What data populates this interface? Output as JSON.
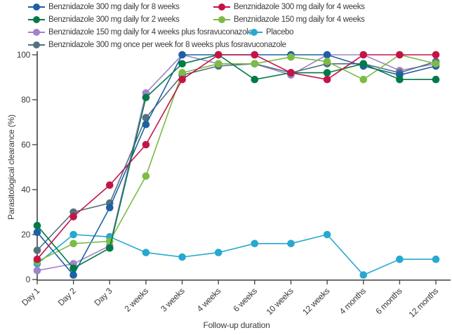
{
  "figure": {
    "xlabel": "Follow-up duration",
    "ylabel": "Parasitological clearance (%)"
  },
  "chart_data": {
    "type": "line",
    "title": "",
    "xlabel": "Follow-up duration",
    "ylabel": "Parasitological clearance (%)",
    "ylim": [
      0,
      100
    ],
    "yticks": [
      0,
      20,
      40,
      60,
      80,
      100
    ],
    "grid": false,
    "legend_position": "top",
    "categories": [
      "Day 1",
      "Day 2",
      "Day 3",
      "2 weeks",
      "3 weeks",
      "4 weeks",
      "6 weeks",
      "10 weeks",
      "12 weeks",
      "4 months",
      "6 months",
      "12 months"
    ],
    "series": [
      {
        "name": "Benznidazole 300 mg daily for 8 weeks",
        "color": "#1d60a5",
        "values": [
          21,
          2,
          32,
          69,
          100,
          100,
          100,
          100,
          100,
          95,
          91,
          95
        ]
      },
      {
        "name": "Benznidazole 300 mg daily for 4 weeks",
        "color": "#c41447",
        "values": [
          9,
          28,
          42,
          60,
          89,
          100,
          100,
          92,
          89,
          100,
          100,
          100
        ]
      },
      {
        "name": "Benznidazole 300 mg daily for 2 weeks",
        "color": "#007a47",
        "values": [
          24,
          5,
          14,
          81,
          96,
          100,
          89,
          92,
          92,
          96,
          89,
          89
        ]
      },
      {
        "name": "Benznidazole 150 mg daily for 4 weeks",
        "color": "#7cbb45",
        "values": [
          8,
          16,
          17,
          46,
          92,
          96,
          96,
          99,
          97,
          89,
          100,
          96
        ]
      },
      {
        "name": "Benznidazole 150 mg daily for 4 weeks plus fosravuconazole",
        "color": "#a183c9",
        "values": [
          4,
          7,
          15,
          83,
          100,
          96,
          96,
          91,
          100,
          100,
          93,
          96
        ]
      },
      {
        "name": "Placebo",
        "color": "#27a8d0",
        "values": [
          7,
          20,
          19,
          12,
          10,
          12,
          16,
          16,
          20,
          2,
          9,
          9
        ]
      },
      {
        "name": "Benznidazole 300 mg once per week for 8 weeks plus fosravuconazole",
        "color": "#54707e",
        "values": [
          13,
          30,
          34,
          72,
          91,
          95,
          96,
          92,
          96,
          96,
          92,
          97
        ]
      }
    ],
    "draw_order": [
      5,
      4,
      6,
      0,
      3,
      2,
      1
    ],
    "axis_color": "#4c4c4c"
  }
}
